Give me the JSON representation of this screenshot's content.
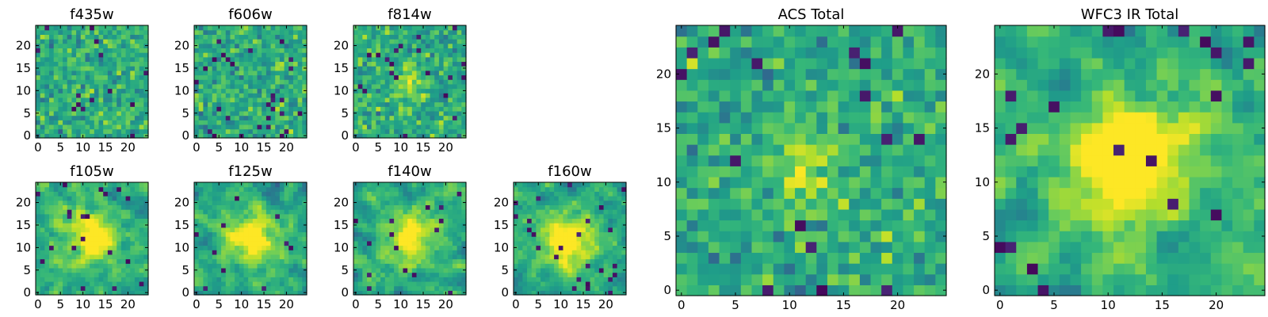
{
  "chart_data": [
    {
      "type": "heatmap",
      "title": "f435w",
      "xticks": [
        "0",
        "5",
        "10",
        "15",
        "20"
      ],
      "yticks": [
        "0",
        "5",
        "10",
        "15",
        "20"
      ],
      "grid_size": 25,
      "xlim": [
        -0.5,
        24.5
      ],
      "ylim": [
        -0.5,
        24.5
      ],
      "colormap": "viridis",
      "grid": false
    },
    {
      "type": "heatmap",
      "title": "f606w",
      "xticks": [
        "0",
        "5",
        "10",
        "15",
        "20"
      ],
      "yticks": [
        "0",
        "5",
        "10",
        "15",
        "20"
      ],
      "grid_size": 25,
      "xlim": [
        -0.5,
        24.5
      ],
      "ylim": [
        -0.5,
        24.5
      ],
      "colormap": "viridis",
      "grid": false
    },
    {
      "type": "heatmap",
      "title": "f814w",
      "xticks": [
        "0",
        "5",
        "10",
        "15",
        "20"
      ],
      "yticks": [
        "0",
        "5",
        "10",
        "15",
        "20"
      ],
      "grid_size": 25,
      "xlim": [
        -0.5,
        24.5
      ],
      "ylim": [
        -0.5,
        24.5
      ],
      "colormap": "viridis",
      "grid": false
    },
    {
      "type": "heatmap",
      "title": "f105w",
      "xticks": [
        "0",
        "5",
        "10",
        "15",
        "20"
      ],
      "yticks": [
        "0",
        "5",
        "10",
        "15",
        "20"
      ],
      "grid_size": 25,
      "xlim": [
        -0.5,
        24.5
      ],
      "ylim": [
        -0.5,
        24.5
      ],
      "colormap": "viridis",
      "grid": false
    },
    {
      "type": "heatmap",
      "title": "f125w",
      "xticks": [
        "0",
        "5",
        "10",
        "15",
        "20"
      ],
      "yticks": [
        "0",
        "5",
        "10",
        "15",
        "20"
      ],
      "grid_size": 25,
      "xlim": [
        -0.5,
        24.5
      ],
      "ylim": [
        -0.5,
        24.5
      ],
      "colormap": "viridis",
      "grid": false
    },
    {
      "type": "heatmap",
      "title": "f140w",
      "xticks": [
        "0",
        "5",
        "10",
        "15",
        "20"
      ],
      "yticks": [
        "0",
        "5",
        "10",
        "15",
        "20"
      ],
      "grid_size": 25,
      "xlim": [
        -0.5,
        24.5
      ],
      "ylim": [
        -0.5,
        24.5
      ],
      "colormap": "viridis",
      "grid": false
    },
    {
      "type": "heatmap",
      "title": "f160w",
      "xticks": [
        "0",
        "5",
        "10",
        "15",
        "20"
      ],
      "yticks": [
        "0",
        "5",
        "10",
        "15",
        "20"
      ],
      "grid_size": 25,
      "xlim": [
        -0.5,
        24.5
      ],
      "ylim": [
        -0.5,
        24.5
      ],
      "colormap": "viridis",
      "grid": false
    },
    {
      "type": "heatmap",
      "title": "ACS Total",
      "xticks": [
        "0",
        "5",
        "10",
        "15",
        "20"
      ],
      "yticks": [
        "0",
        "5",
        "10",
        "15",
        "20"
      ],
      "grid_size": 25,
      "xlim": [
        -0.5,
        24.5
      ],
      "ylim": [
        -0.5,
        24.5
      ],
      "colormap": "viridis",
      "grid": false
    },
    {
      "type": "heatmap",
      "title": "WFC3 IR Total",
      "xticks": [
        "0",
        "5",
        "10",
        "15",
        "20"
      ],
      "yticks": [
        "0",
        "5",
        "10",
        "15",
        "20"
      ],
      "grid_size": 25,
      "xlim": [
        -0.5,
        24.5
      ],
      "ylim": [
        -0.5,
        24.5
      ],
      "colormap": "viridis",
      "grid": false
    }
  ]
}
